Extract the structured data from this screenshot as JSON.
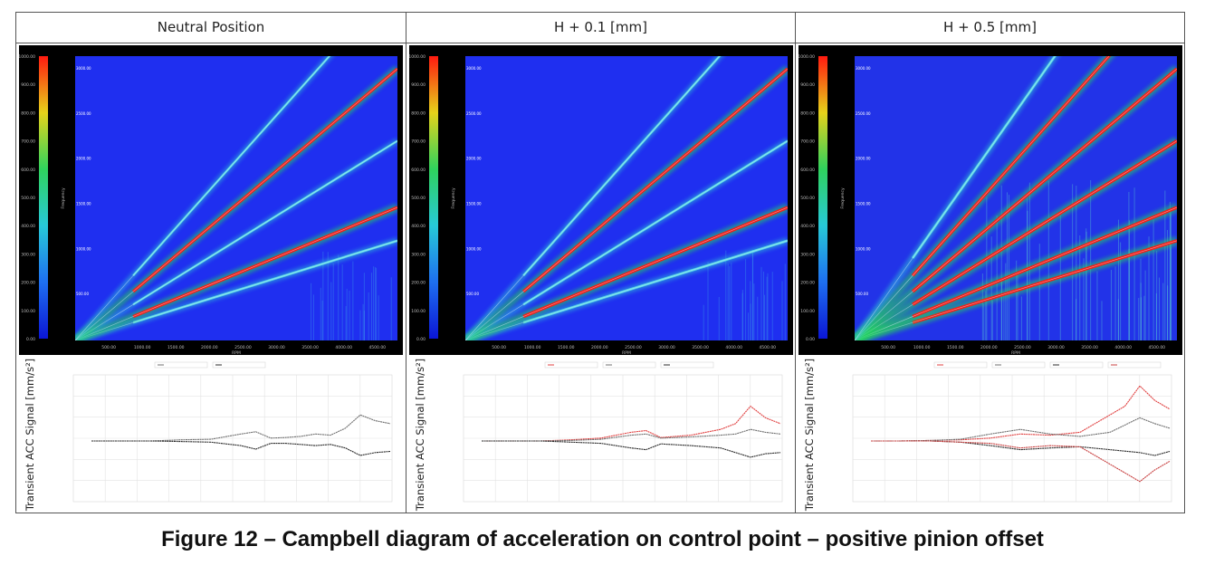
{
  "figure": {
    "caption": "Figure 12 – Campbell diagram of acceleration on control point – positive pinion offset"
  },
  "colors": {
    "background_blue": "#1f2ff0",
    "high_red": "#ff1a10",
    "mid_green": "#27d85a",
    "legend_bar": [
      "#0b16d6",
      "#1e6ff0",
      "#27c9d8",
      "#2fd25d",
      "#e6d21a",
      "#ff1a10"
    ]
  },
  "chart_data": [
    {
      "type": "heatmap",
      "panel_title": "Neutral Position",
      "xlabel": "RPM",
      "ylabel": "Frequency",
      "x_ticks": [
        "500.00",
        "1000.00",
        "1500.00",
        "2000.00",
        "2500.00",
        "3000.00",
        "3500.00",
        "4000.00",
        "4500.00"
      ],
      "y_ticks": [
        "500.00",
        "1000.00",
        "1500.00",
        "2000.00",
        "2500.00",
        "3000.00"
      ],
      "colorbar_ticks": [
        "0.00",
        "100.00",
        "200.00",
        "300.00",
        "400.00",
        "500.00",
        "600.00",
        "700.00",
        "800.00",
        "900.00",
        "1000.00"
      ],
      "orders": [
        {
          "slope": 0.36,
          "intensity": 0.55
        },
        {
          "slope": 0.48,
          "intensity": 0.95
        },
        {
          "slope": 0.72,
          "intensity": 0.45
        },
        {
          "slope": 0.98,
          "intensity": 0.85
        },
        {
          "slope": 1.3,
          "intensity": 0.45
        }
      ],
      "transient": {
        "ylabel": "Transient ACC Signal [mm/s²]",
        "series": [
          {
            "color": "#6f6f6f",
            "points": [
              [
                0,
                0
              ],
              [
                0.1,
                0
              ],
              [
                0.2,
                0
              ],
              [
                0.3,
                0.02
              ],
              [
                0.4,
                0.03
              ],
              [
                0.5,
                0.12
              ],
              [
                0.55,
                0.16
              ],
              [
                0.6,
                0.05
              ],
              [
                0.65,
                0.06
              ],
              [
                0.7,
                0.08
              ],
              [
                0.75,
                0.12
              ],
              [
                0.8,
                0.1
              ],
              [
                0.85,
                0.22
              ],
              [
                0.9,
                0.45
              ],
              [
                0.95,
                0.35
              ],
              [
                1,
                0.3
              ]
            ]
          },
          {
            "color": "#2a2a2a",
            "points": [
              [
                0,
                0
              ],
              [
                0.1,
                0
              ],
              [
                0.2,
                0
              ],
              [
                0.3,
                -0.01
              ],
              [
                0.4,
                -0.02
              ],
              [
                0.5,
                -0.08
              ],
              [
                0.55,
                -0.14
              ],
              [
                0.6,
                -0.04
              ],
              [
                0.65,
                -0.04
              ],
              [
                0.7,
                -0.06
              ],
              [
                0.75,
                -0.08
              ],
              [
                0.8,
                -0.06
              ],
              [
                0.85,
                -0.12
              ],
              [
                0.9,
                -0.25
              ],
              [
                0.95,
                -0.2
              ],
              [
                1,
                -0.18
              ]
            ]
          }
        ]
      }
    },
    {
      "type": "heatmap",
      "panel_title": "H + 0.1 [mm]",
      "xlabel": "RPM",
      "ylabel": "Frequency",
      "x_ticks": [
        "500.00",
        "1000.00",
        "1500.00",
        "2000.00",
        "2500.00",
        "3000.00",
        "3500.00",
        "4000.00",
        "4500.00"
      ],
      "y_ticks": [
        "500.00",
        "1000.00",
        "1500.00",
        "2000.00",
        "2500.00",
        "3000.00"
      ],
      "colorbar_ticks": [
        "0.00",
        "100.00",
        "200.00",
        "300.00",
        "400.00",
        "500.00",
        "600.00",
        "700.00",
        "800.00",
        "900.00",
        "1000.00"
      ],
      "orders": [
        {
          "slope": 0.36,
          "intensity": 0.6
        },
        {
          "slope": 0.48,
          "intensity": 1.0
        },
        {
          "slope": 0.72,
          "intensity": 0.5
        },
        {
          "slope": 0.98,
          "intensity": 0.9
        },
        {
          "slope": 1.3,
          "intensity": 0.5
        }
      ],
      "transient": {
        "ylabel": "Transient ACC Signal [mm/s²]",
        "series": [
          {
            "color": "#e04040",
            "points": [
              [
                0,
                0
              ],
              [
                0.1,
                0
              ],
              [
                0.2,
                0
              ],
              [
                0.3,
                0.02
              ],
              [
                0.4,
                0.05
              ],
              [
                0.5,
                0.15
              ],
              [
                0.55,
                0.18
              ],
              [
                0.6,
                0.06
              ],
              [
                0.7,
                0.1
              ],
              [
                0.8,
                0.2
              ],
              [
                0.85,
                0.3
              ],
              [
                0.9,
                0.6
              ],
              [
                0.95,
                0.4
              ],
              [
                1,
                0.3
              ]
            ]
          },
          {
            "color": "#6f6f6f",
            "points": [
              [
                0,
                0
              ],
              [
                0.1,
                0
              ],
              [
                0.2,
                0
              ],
              [
                0.3,
                0.01
              ],
              [
                0.4,
                0.03
              ],
              [
                0.5,
                0.1
              ],
              [
                0.55,
                0.12
              ],
              [
                0.6,
                0.05
              ],
              [
                0.7,
                0.07
              ],
              [
                0.8,
                0.1
              ],
              [
                0.85,
                0.12
              ],
              [
                0.9,
                0.2
              ],
              [
                0.95,
                0.15
              ],
              [
                1,
                0.12
              ]
            ]
          },
          {
            "color": "#2a2a2a",
            "points": [
              [
                0,
                0
              ],
              [
                0.1,
                0
              ],
              [
                0.2,
                0
              ],
              [
                0.3,
                -0.02
              ],
              [
                0.4,
                -0.04
              ],
              [
                0.5,
                -0.12
              ],
              [
                0.55,
                -0.15
              ],
              [
                0.6,
                -0.05
              ],
              [
                0.7,
                -0.08
              ],
              [
                0.8,
                -0.12
              ],
              [
                0.85,
                -0.2
              ],
              [
                0.9,
                -0.28
              ],
              [
                0.95,
                -0.22
              ],
              [
                1,
                -0.2
              ]
            ]
          }
        ]
      }
    },
    {
      "type": "heatmap",
      "panel_title": "H + 0.5 [mm]",
      "xlabel": "RPM",
      "ylabel": "Frequency",
      "x_ticks": [
        "500.00",
        "1000.00",
        "1500.00",
        "2000.00",
        "2500.00",
        "3000.00",
        "3500.00",
        "4000.00",
        "4500.00"
      ],
      "y_ticks": [
        "500.00",
        "1000.00",
        "1500.00",
        "2000.00",
        "2500.00",
        "3000.00"
      ],
      "colorbar_ticks": [
        "0.00",
        "100.00",
        "200.00",
        "300.00",
        "400.00",
        "500.00",
        "600.00",
        "700.00",
        "800.00",
        "900.00",
        "1000.00"
      ],
      "orders": [
        {
          "slope": 0.36,
          "intensity": 1.0
        },
        {
          "slope": 0.48,
          "intensity": 1.0
        },
        {
          "slope": 0.72,
          "intensity": 1.0
        },
        {
          "slope": 0.98,
          "intensity": 1.0
        },
        {
          "slope": 1.3,
          "intensity": 0.9
        },
        {
          "slope": 1.65,
          "intensity": 0.6
        }
      ],
      "transient": {
        "ylabel": "Transient ACC Signal [mm/s²]",
        "series": [
          {
            "color": "#e04040",
            "points": [
              [
                0,
                0
              ],
              [
                0.1,
                0
              ],
              [
                0.2,
                0.01
              ],
              [
                0.3,
                0.02
              ],
              [
                0.4,
                0.05
              ],
              [
                0.5,
                0.12
              ],
              [
                0.6,
                0.1
              ],
              [
                0.7,
                0.15
              ],
              [
                0.75,
                0.3
              ],
              [
                0.8,
                0.45
              ],
              [
                0.85,
                0.6
              ],
              [
                0.9,
                0.95
              ],
              [
                0.95,
                0.7
              ],
              [
                1,
                0.55
              ]
            ]
          },
          {
            "color": "#6f6f6f",
            "points": [
              [
                0,
                0
              ],
              [
                0.1,
                0
              ],
              [
                0.2,
                0.01
              ],
              [
                0.3,
                0.03
              ],
              [
                0.4,
                0.12
              ],
              [
                0.5,
                0.2
              ],
              [
                0.6,
                0.12
              ],
              [
                0.7,
                0.08
              ],
              [
                0.8,
                0.15
              ],
              [
                0.9,
                0.4
              ],
              [
                0.95,
                0.3
              ],
              [
                1,
                0.22
              ]
            ]
          },
          {
            "color": "#2a2a2a",
            "points": [
              [
                0,
                0
              ],
              [
                0.1,
                0
              ],
              [
                0.2,
                0
              ],
              [
                0.3,
                -0.02
              ],
              [
                0.4,
                -0.08
              ],
              [
                0.5,
                -0.15
              ],
              [
                0.6,
                -0.12
              ],
              [
                0.7,
                -0.1
              ],
              [
                0.8,
                -0.15
              ],
              [
                0.9,
                -0.2
              ],
              [
                0.95,
                -0.25
              ],
              [
                1,
                -0.18
              ]
            ]
          },
          {
            "color": "#c84040",
            "points": [
              [
                0,
                0
              ],
              [
                0.1,
                0
              ],
              [
                0.2,
                0
              ],
              [
                0.3,
                -0.02
              ],
              [
                0.4,
                -0.04
              ],
              [
                0.5,
                -0.12
              ],
              [
                0.6,
                -0.08
              ],
              [
                0.7,
                -0.1
              ],
              [
                0.75,
                -0.25
              ],
              [
                0.8,
                -0.4
              ],
              [
                0.85,
                -0.55
              ],
              [
                0.9,
                -0.7
              ],
              [
                0.95,
                -0.5
              ],
              [
                1,
                -0.35
              ]
            ]
          }
        ]
      }
    }
  ]
}
